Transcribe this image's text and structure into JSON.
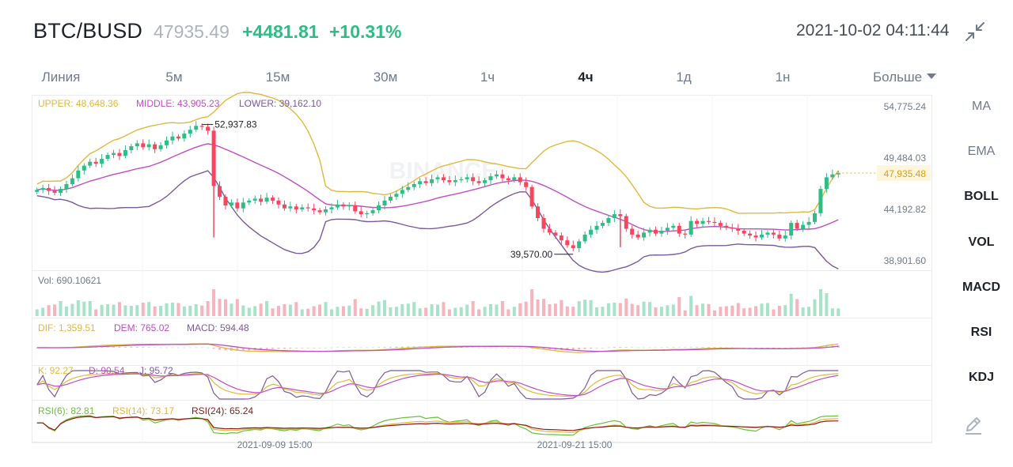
{
  "header": {
    "pair": "BTC/BUSD",
    "last_price": "47935.49",
    "change": "+4481.81",
    "change_pct": "+10.31%",
    "datetime": "2021-10-02 04:11:44",
    "collapse_icon": "collapse-arrows-icon"
  },
  "tabs": [
    {
      "label": "Линия",
      "active": false
    },
    {
      "label": "5м",
      "active": false
    },
    {
      "label": "15м",
      "active": false
    },
    {
      "label": "30м",
      "active": false
    },
    {
      "label": "1ч",
      "active": false
    },
    {
      "label": "4ч",
      "active": true
    },
    {
      "label": "1д",
      "active": false
    },
    {
      "label": "1н",
      "active": false
    }
  ],
  "more_label": "Больше",
  "indicators": [
    {
      "label": "MA",
      "bold": false
    },
    {
      "label": "EMA",
      "bold": false
    },
    {
      "label": "BOLL",
      "bold": true
    },
    {
      "label": "VOL",
      "bold": true
    },
    {
      "label": "MACD",
      "bold": true
    },
    {
      "label": "RSI",
      "bold": true
    },
    {
      "label": "KDJ",
      "bold": true
    }
  ],
  "draw_tool_icon": "pen-icon",
  "colors": {
    "up": "#2ebd85",
    "down": "#f6465d",
    "upper": "#e2b83c",
    "middle": "#c04ec3",
    "lower": "#7a5a9e",
    "rsi6": "#68c13a",
    "rsi14": "#e2b83c",
    "rsi24": "#8b1a1a"
  },
  "chart_data": {
    "type": "candlestick",
    "boll": {
      "upper": "UPPER: 48,648.36",
      "middle": "MIDDLE: 43,905.23",
      "lower": "LOWER: 39,162.10"
    },
    "price_axis_labels": [
      "54,775.24",
      "49,484.03",
      "44,192.82",
      "38,901.60"
    ],
    "price_axis_values": [
      54775.24,
      49484.03,
      44192.82,
      38901.6
    ],
    "current_price_label": "47,935.48",
    "current_price": 47935.48,
    "high_marker": "52,937.83",
    "high_value": 52937.83,
    "low_marker": "39,570.00",
    "low_value": 39570.0,
    "volume_label": "Vol: 690.10621",
    "macd": {
      "dif": "DIF: 1,359.51",
      "dem": "DEM: 765.02",
      "macd": "MACD: 594.48"
    },
    "kdj": {
      "k": "K: 92.27",
      "d": "D: 90.54",
      "j": "J: 95.72"
    },
    "rsi": {
      "rsi6": "RSI(6): 82.81",
      "rsi14": "RSI(14): 73.17",
      "rsi24": "RSI(24): 65.24"
    },
    "x_labels": [
      "2021-09-09 15:00",
      "2021-09-21 15:00"
    ],
    "close_series": [
      46200,
      46400,
      46100,
      45900,
      46300,
      46800,
      47400,
      48200,
      48700,
      49100,
      48900,
      49400,
      49800,
      50000,
      49700,
      50300,
      50700,
      51000,
      50600,
      50900,
      50400,
      50800,
      51300,
      51700,
      51500,
      52000,
      52400,
      52800,
      52700,
      52300,
      46600,
      45500,
      44600,
      44900,
      44300,
      44900,
      45100,
      45300,
      45000,
      45400,
      45100,
      44700,
      44300,
      44500,
      44200,
      44400,
      44300,
      44100,
      43900,
      44200,
      44400,
      44700,
      44500,
      44600,
      44000,
      43700,
      43800,
      44100,
      44600,
      45100,
      45500,
      45800,
      46200,
      46500,
      46800,
      47100,
      46900,
      47300,
      47500,
      47200,
      47000,
      47200,
      47300,
      47500,
      47100,
      46900,
      47200,
      47600,
      47800,
      47400,
      47200,
      47500,
      47000,
      46500,
      44500,
      43300,
      42200,
      41800,
      41500,
      41000,
      40500,
      40200,
      40900,
      41600,
      42100,
      42500,
      42800,
      43300,
      43700,
      43500,
      42200,
      41600,
      41300,
      41800,
      42100,
      41700,
      42000,
      42300,
      42500,
      41700,
      41600,
      43000,
      42700,
      43000,
      42900,
      42800,
      42500,
      42300,
      42200,
      42000,
      41700,
      41500,
      41300,
      41600,
      41800,
      41600,
      41200,
      41500,
      42800,
      42200,
      42600,
      42900,
      43800,
      46300,
      47500,
      47800,
      47935
    ]
  }
}
